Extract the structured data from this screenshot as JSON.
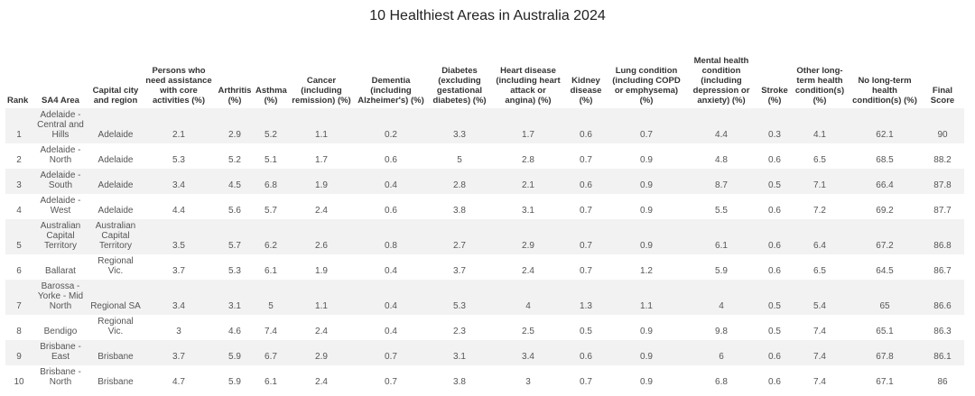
{
  "title": "10 Healthiest Areas in Australia 2024",
  "columns": [
    "Rank",
    "SA4 Area",
    "Capital city and region",
    "Persons who need assistance with core activities (%)",
    "Arthritis (%)",
    "Asthma (%)",
    "Cancer (including remission) (%)",
    "Dementia (including Alzheimer's) (%)",
    "Diabetes (excluding gestational diabetes) (%)",
    "Heart disease (including heart attack or angina) (%)",
    "Kidney disease (%)",
    "Lung condition (including COPD or emphysema) (%)",
    "Mental health condition (including depression or anxiety) (%)",
    "Stroke (%)",
    "Other long-term health condition(s) (%)",
    "No long-term health condition(s) (%)",
    "Final Score"
  ],
  "rows": [
    [
      "1",
      "Adelaide - Central and Hills",
      "Adelaide",
      "2.1",
      "2.9",
      "5.2",
      "1.1",
      "0.2",
      "3.3",
      "1.7",
      "0.6",
      "0.7",
      "4.4",
      "0.3",
      "4.1",
      "62.1",
      "90"
    ],
    [
      "2",
      "Adelaide - North",
      "Adelaide",
      "5.3",
      "5.2",
      "5.1",
      "1.7",
      "0.6",
      "5",
      "2.8",
      "0.7",
      "0.9",
      "4.8",
      "0.6",
      "6.5",
      "68.5",
      "88.2"
    ],
    [
      "3",
      "Adelaide - South",
      "Adelaide",
      "3.4",
      "4.5",
      "6.8",
      "1.9",
      "0.4",
      "2.8",
      "2.1",
      "0.6",
      "0.9",
      "8.7",
      "0.5",
      "7.1",
      "66.4",
      "87.8"
    ],
    [
      "4",
      "Adelaide - West",
      "Adelaide",
      "4.4",
      "5.6",
      "5.7",
      "2.4",
      "0.6",
      "3.8",
      "3.1",
      "0.7",
      "0.9",
      "5.5",
      "0.6",
      "7.2",
      "69.2",
      "87.7"
    ],
    [
      "5",
      "Australian Capital Territory",
      "Australian Capital Territory",
      "3.5",
      "5.7",
      "6.2",
      "2.6",
      "0.8",
      "2.7",
      "2.9",
      "0.7",
      "0.9",
      "6.1",
      "0.6",
      "6.4",
      "67.2",
      "86.8"
    ],
    [
      "6",
      "Ballarat",
      "Regional Vic.",
      "3.7",
      "5.3",
      "6.1",
      "1.9",
      "0.4",
      "3.7",
      "2.4",
      "0.7",
      "1.2",
      "5.9",
      "0.6",
      "6.5",
      "64.5",
      "86.7"
    ],
    [
      "7",
      "Barossa - Yorke - Mid North",
      "Regional SA",
      "3.4",
      "3.1",
      "5",
      "1.1",
      "0.4",
      "5.3",
      "4",
      "1.3",
      "1.1",
      "4",
      "0.5",
      "5.4",
      "65",
      "86.6"
    ],
    [
      "8",
      "Bendigo",
      "Regional Vic.",
      "3",
      "4.6",
      "7.4",
      "2.4",
      "0.4",
      "2.3",
      "2.5",
      "0.5",
      "0.9",
      "9.8",
      "0.5",
      "7.4",
      "65.1",
      "86.3"
    ],
    [
      "9",
      "Brisbane - East",
      "Brisbane",
      "3.7",
      "5.9",
      "6.7",
      "2.9",
      "0.7",
      "3.1",
      "3.4",
      "0.6",
      "0.9",
      "6",
      "0.6",
      "7.4",
      "67.8",
      "86.1"
    ],
    [
      "10",
      "Brisbane - North",
      "Brisbane",
      "4.7",
      "5.9",
      "6.1",
      "2.4",
      "0.7",
      "3.8",
      "3",
      "0.7",
      "0.9",
      "6.8",
      "0.6",
      "7.4",
      "67.1",
      "86"
    ]
  ]
}
